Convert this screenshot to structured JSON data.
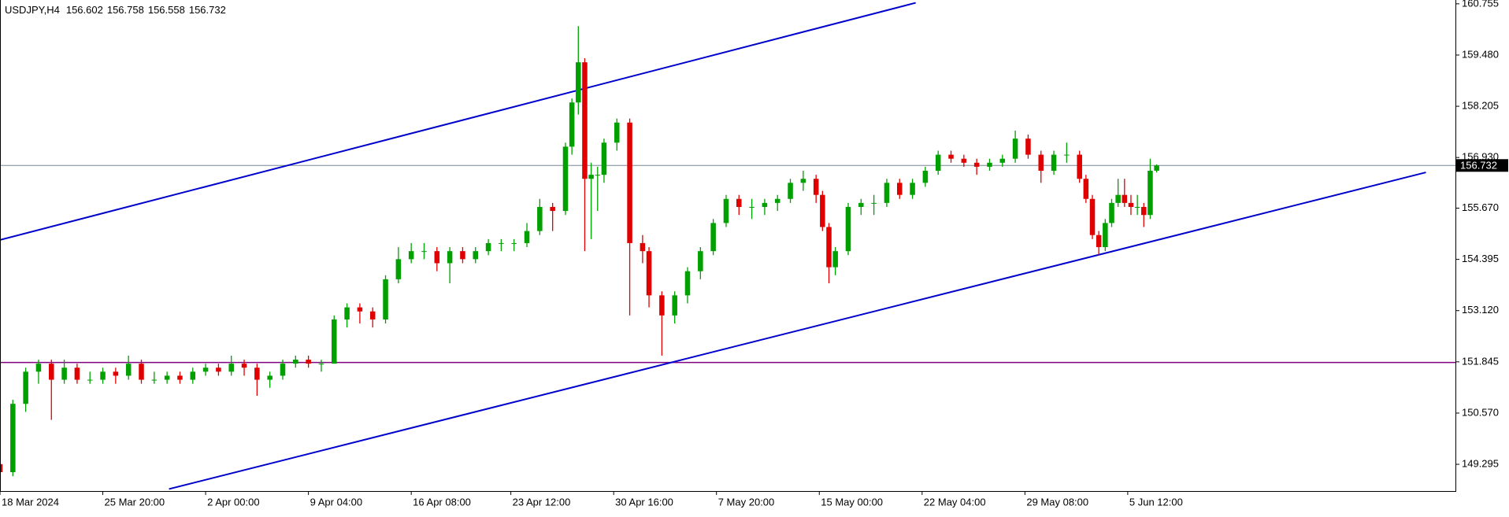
{
  "chart_data": {
    "type": "candlestick",
    "symbol": "USDJPY,H4",
    "x": [
      0,
      4,
      8,
      12,
      16,
      20,
      24,
      28,
      32,
      36,
      40,
      44,
      48,
      52,
      56,
      60,
      64,
      68,
      72,
      76,
      80,
      84,
      88,
      92,
      96,
      100,
      104,
      108,
      112,
      116,
      120,
      124,
      128,
      132,
      136,
      140,
      144,
      148,
      152,
      156,
      160,
      164,
      168,
      172,
      176,
      178,
      180,
      182,
      184,
      186,
      188,
      192,
      196,
      200,
      202,
      206,
      210,
      214,
      218,
      222,
      226,
      230,
      234,
      238,
      242,
      246,
      250,
      254,
      256,
      258,
      260,
      264,
      268,
      272,
      276,
      280,
      284,
      288,
      292,
      296,
      300,
      304,
      308,
      312,
      316,
      320,
      324,
      328,
      332,
      336,
      338,
      340,
      342,
      344,
      346,
      348,
      350,
      352,
      354,
      356,
      358,
      360
    ],
    "open": [
      149.3,
      149.1,
      150.8,
      151.6,
      151.8,
      151.4,
      151.7,
      151.4,
      151.4,
      151.6,
      151.5,
      151.8,
      151.4,
      151.4,
      151.5,
      151.4,
      151.6,
      151.7,
      151.6,
      151.8,
      151.7,
      151.4,
      151.5,
      151.8,
      151.9,
      151.8,
      151.8,
      152.9,
      153.2,
      153.1,
      152.9,
      153.9,
      154.4,
      154.6,
      154.6,
      154.3,
      154.6,
      154.4,
      154.6,
      154.8,
      154.8,
      154.8,
      155.1,
      155.7,
      155.6,
      157.2,
      158.3,
      159.3,
      156.4,
      156.5,
      156.5,
      157.3,
      157.8,
      154.8,
      154.6,
      153.5,
      153.0,
      153.5,
      154.1,
      154.6,
      155.3,
      155.9,
      155.7,
      155.7,
      155.8,
      155.9,
      156.3,
      156.4,
      156.0,
      155.2,
      154.2,
      154.6,
      155.7,
      155.8,
      155.8,
      156.3,
      156.0,
      156.3,
      156.6,
      157.0,
      156.9,
      156.8,
      156.7,
      156.8,
      156.9,
      157.4,
      157.0,
      156.6,
      157.0,
      157.0,
      156.4,
      155.9,
      155.0,
      154.7,
      155.3,
      155.8,
      156.0,
      155.8,
      155.7,
      155.7,
      155.5,
      156.602
    ],
    "high": [
      149.4,
      150.9,
      151.7,
      151.9,
      151.9,
      151.9,
      151.8,
      151.6,
      151.7,
      151.7,
      152.0,
      151.9,
      151.6,
      151.6,
      151.6,
      151.7,
      151.8,
      151.8,
      152.0,
      151.9,
      151.8,
      151.6,
      151.9,
      152.0,
      152.0,
      151.9,
      153.0,
      153.3,
      153.3,
      153.2,
      154.0,
      154.7,
      154.8,
      154.8,
      154.7,
      154.7,
      154.7,
      154.7,
      154.9,
      154.9,
      154.9,
      155.3,
      155.9,
      155.8,
      157.3,
      158.4,
      160.2,
      159.4,
      156.8,
      156.7,
      157.4,
      157.9,
      157.9,
      155.0,
      154.7,
      153.6,
      153.6,
      154.2,
      154.7,
      155.4,
      156.0,
      156.0,
      155.9,
      155.9,
      156.0,
      156.4,
      156.6,
      156.5,
      156.1,
      155.3,
      154.7,
      155.8,
      155.9,
      156.0,
      156.4,
      156.4,
      156.4,
      156.7,
      157.1,
      157.1,
      157.0,
      156.9,
      156.9,
      157.0,
      157.6,
      157.5,
      157.1,
      157.1,
      157.3,
      157.1,
      156.5,
      156.0,
      155.1,
      155.4,
      155.9,
      156.4,
      156.4,
      156.0,
      156.0,
      155.8,
      156.9,
      156.758
    ],
    "low": [
      148.9,
      149.0,
      150.6,
      151.3,
      150.4,
      151.3,
      151.3,
      151.3,
      151.3,
      151.3,
      151.4,
      151.3,
      151.3,
      151.3,
      151.3,
      151.3,
      151.5,
      151.5,
      151.5,
      151.5,
      151.0,
      151.2,
      151.4,
      151.7,
      151.7,
      151.6,
      151.8,
      152.7,
      152.8,
      152.7,
      152.8,
      153.8,
      154.3,
      154.4,
      154.1,
      153.8,
      154.3,
      154.3,
      154.5,
      154.6,
      154.6,
      154.7,
      155.0,
      155.1,
      155.5,
      157.0,
      158.0,
      154.6,
      154.9,
      155.6,
      156.3,
      157.1,
      153.0,
      154.3,
      153.2,
      152.0,
      152.8,
      153.3,
      153.9,
      154.5,
      155.2,
      155.5,
      155.4,
      155.5,
      155.6,
      155.8,
      156.1,
      155.8,
      155.1,
      153.8,
      154.0,
      154.5,
      155.5,
      155.5,
      155.7,
      155.9,
      155.9,
      156.2,
      156.5,
      156.8,
      156.7,
      156.5,
      156.6,
      156.7,
      156.8,
      156.9,
      156.3,
      156.5,
      156.8,
      156.3,
      155.8,
      154.9,
      154.5,
      154.6,
      155.2,
      155.7,
      155.7,
      155.5,
      155.5,
      155.2,
      155.4,
      156.558
    ],
    "close": [
      149.1,
      150.8,
      151.6,
      151.8,
      151.4,
      151.7,
      151.4,
      151.4,
      151.6,
      151.5,
      151.8,
      151.4,
      151.4,
      151.5,
      151.4,
      151.6,
      151.7,
      151.6,
      151.8,
      151.7,
      151.4,
      151.5,
      151.8,
      151.9,
      151.8,
      151.8,
      152.9,
      153.2,
      153.1,
      152.9,
      153.9,
      154.4,
      154.6,
      154.6,
      154.3,
      154.6,
      154.4,
      154.6,
      154.8,
      154.8,
      154.8,
      155.1,
      155.7,
      155.6,
      157.2,
      158.3,
      159.3,
      156.4,
      156.5,
      156.5,
      157.3,
      157.8,
      154.8,
      154.6,
      153.5,
      153.0,
      153.5,
      154.1,
      154.6,
      155.3,
      155.9,
      155.7,
      155.7,
      155.8,
      155.9,
      156.3,
      156.4,
      156.0,
      155.2,
      154.2,
      154.6,
      155.7,
      155.8,
      155.8,
      156.3,
      156.0,
      156.3,
      156.6,
      157.0,
      156.9,
      156.8,
      156.7,
      156.8,
      156.9,
      157.4,
      157.0,
      156.6,
      157.0,
      157.0,
      156.4,
      155.9,
      155.0,
      154.7,
      155.3,
      155.8,
      156.0,
      155.8,
      155.7,
      155.7,
      155.5,
      156.6,
      156.732
    ],
    "up_color": "#00a000",
    "down_color": "#e00000",
    "xlim": [
      0,
      453
    ],
    "xticks": [
      {
        "value": 0,
        "label": "18 Mar 2024"
      },
      {
        "value": 32,
        "label": "25 Mar 20:00"
      },
      {
        "value": 64,
        "label": "2 Apr 00:00"
      },
      {
        "value": 96,
        "label": "9 Apr 04:00"
      },
      {
        "value": 128,
        "label": "16 Apr 08:00"
      },
      {
        "value": 159,
        "label": "23 Apr 12:00"
      },
      {
        "value": 191,
        "label": "30 Apr 16:00"
      },
      {
        "value": 223,
        "label": "7 May 20:00"
      },
      {
        "value": 255,
        "label": "15 May 00:00"
      },
      {
        "value": 287,
        "label": "22 May 04:00"
      },
      {
        "value": 319,
        "label": "29 May 08:00"
      },
      {
        "value": 351,
        "label": "5 Jun 12:00"
      }
    ],
    "ylim": [
      148.63,
      160.85
    ],
    "yticks": [
      160.755,
      {
        "value": 159.48,
        "label": "159.480"
      },
      158.205,
      {
        "value": 156.93,
        "label": "156.930"
      },
      {
        "value": 155.67,
        "label": "155.670"
      },
      154.395,
      {
        "value": 153.12,
        "label": "153.120"
      },
      151.845,
      {
        "value": 150.57,
        "label": "150.570"
      },
      149.295
    ],
    "current_price": 156.732,
    "current_price_color": "#778899",
    "hlines": [
      {
        "value": 151.83,
        "color": "#800080"
      }
    ],
    "trendlines": [
      {
        "x": [
          0,
          285
        ],
        "y": [
          154.88,
          160.78
        ],
        "color": "#0000cc"
      },
      {
        "x": [
          52.6,
          443.8
        ],
        "y": [
          148.68,
          156.56
        ],
        "color": "#0000cc"
      }
    ]
  }
}
